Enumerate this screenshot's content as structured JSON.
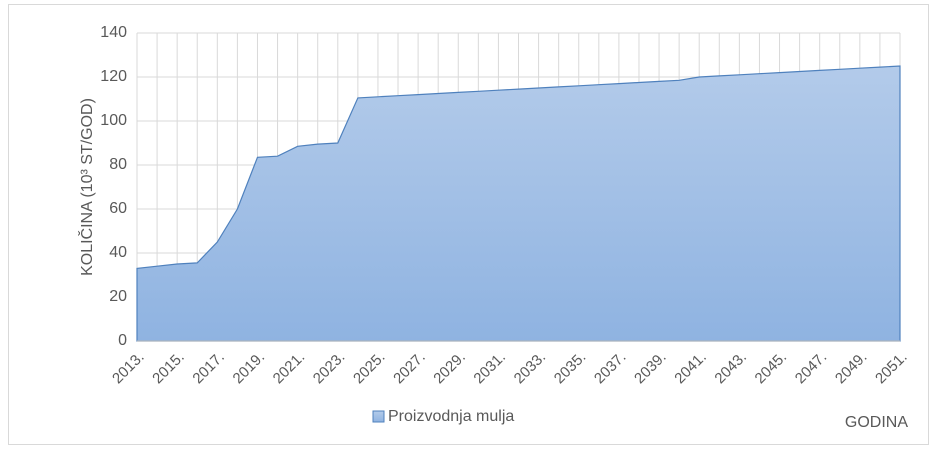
{
  "chart_data": {
    "type": "area",
    "y_label": "KOLIČINA (10³ ST/GOD)",
    "x_label": "GODINA",
    "categories": [
      "2013.",
      null,
      "2015.",
      null,
      "2017.",
      null,
      "2019.",
      null,
      "2021.",
      null,
      "2023.",
      null,
      "2025.",
      null,
      "2027.",
      null,
      "2029.",
      null,
      "2031.",
      null,
      "2033.",
      null,
      "2035.",
      null,
      "2037.",
      null,
      "2039.",
      null,
      "2041.",
      null,
      "2043.",
      null,
      "2045.",
      null,
      "2047.",
      null,
      "2049.",
      null,
      "2051."
    ],
    "series": [
      {
        "name": "Proizvodnja mulja",
        "color": "#4f81bd",
        "values": [
          33,
          34,
          35,
          35.5,
          45,
          60,
          83.5,
          84,
          88.5,
          89.5,
          90,
          110.5,
          111,
          111.5,
          112,
          112.5,
          113,
          113.5,
          114,
          114.5,
          115,
          115.5,
          116,
          116.5,
          117,
          117.5,
          118,
          118.5,
          120,
          120.5,
          121,
          121.5,
          122,
          122.5,
          123,
          123.5,
          124,
          124.5,
          125
        ]
      }
    ],
    "ylim": [
      0,
      140
    ],
    "yticks": [
      0,
      20,
      40,
      60,
      80,
      100,
      120,
      140
    ],
    "grid": true,
    "legend": "bottom"
  }
}
